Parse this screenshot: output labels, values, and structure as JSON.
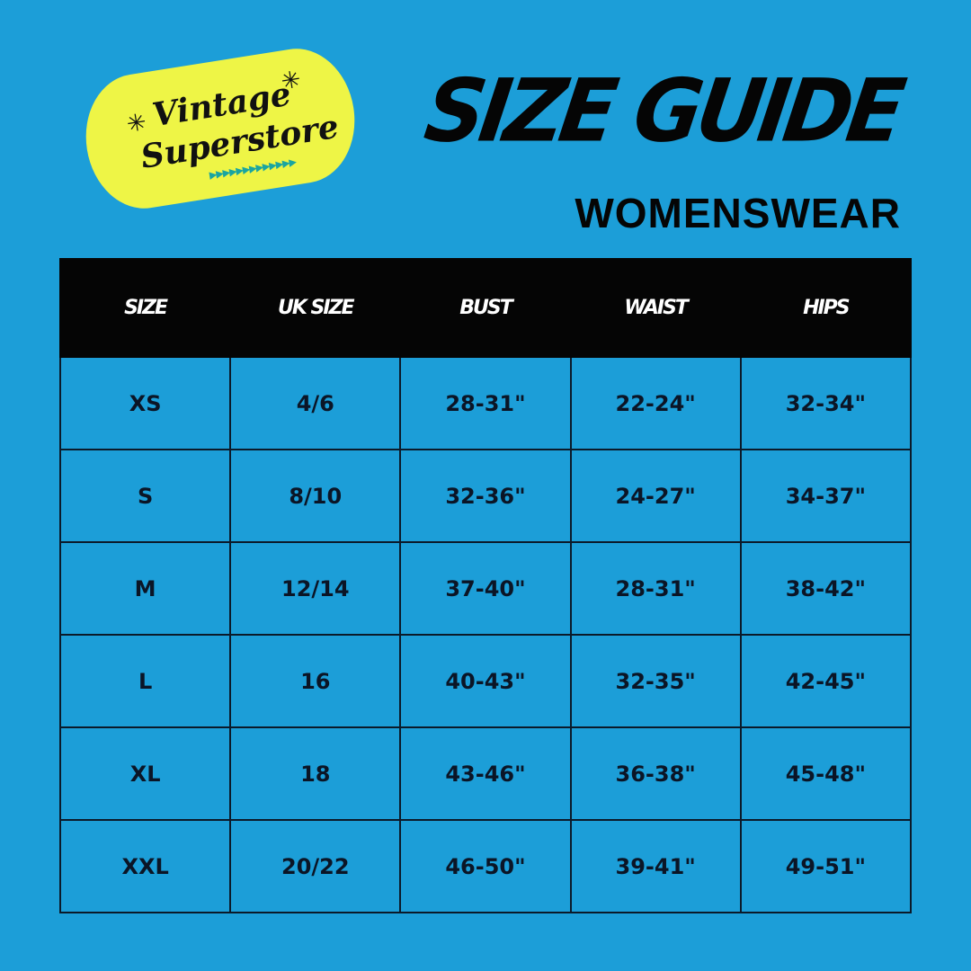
{
  "logo": {
    "line1": "Vintage",
    "line2": "Superstore",
    "colors": {
      "plate": "#eef546",
      "accent": "#1aa5a0"
    }
  },
  "title": "SIZE GUIDE",
  "subtitle": "WOMENSWEAR",
  "table": {
    "headers": [
      "SIZE",
      "UK SIZE",
      "BUST",
      "WAIST",
      "HIPS"
    ],
    "rows": [
      [
        "XS",
        "4/6",
        "28-31\"",
        "22-24\"",
        "32-34\""
      ],
      [
        "S",
        "8/10",
        "32-36\"",
        "24-27\"",
        "34-37\""
      ],
      [
        "M",
        "12/14",
        "37-40\"",
        "28-31\"",
        "38-42\""
      ],
      [
        "L",
        "16",
        "40-43\"",
        "32-35\"",
        "42-45\""
      ],
      [
        "XL",
        "18",
        "43-46\"",
        "36-38\"",
        "45-48\""
      ],
      [
        "XXL",
        "20/22",
        "46-50\"",
        "39-41\"",
        "49-51\""
      ]
    ]
  },
  "colors": {
    "background": "#1c9ed8",
    "header": "#050505"
  }
}
